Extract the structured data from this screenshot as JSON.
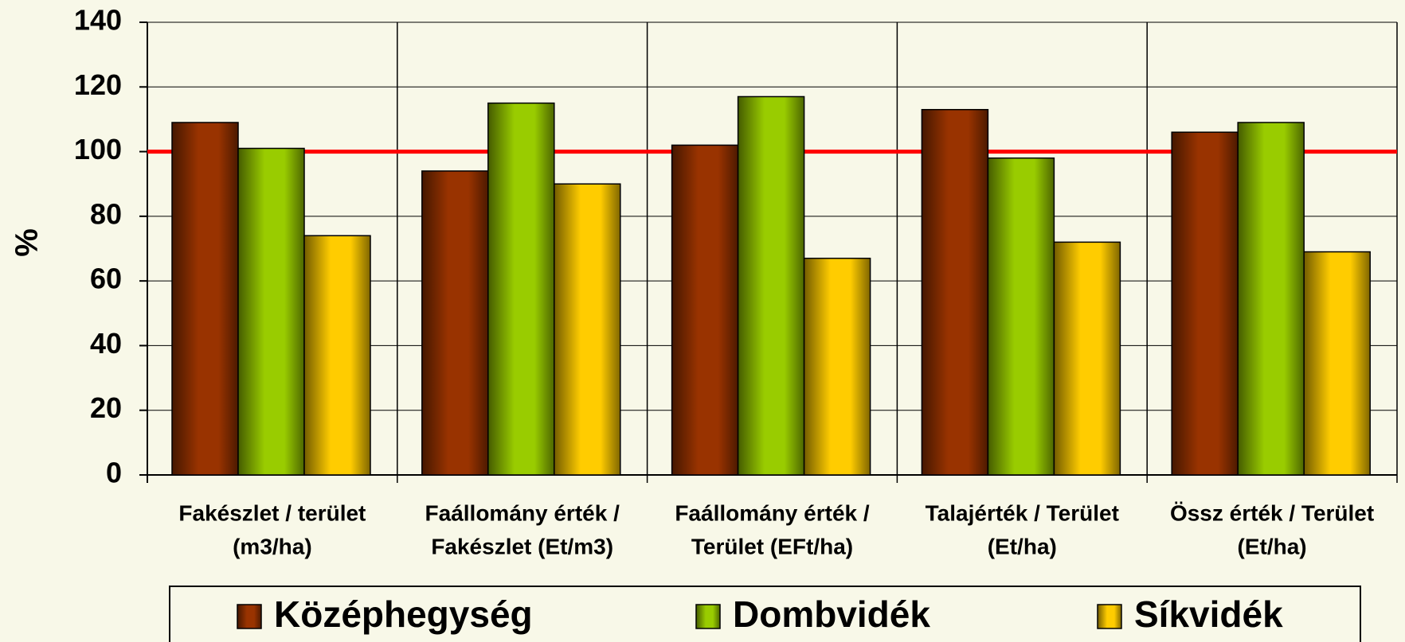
{
  "chart_data": {
    "type": "bar",
    "categories": [
      [
        "Fakészlet / terület",
        "(m3/ha)"
      ],
      [
        "Faállomány érték /",
        "Fakészlet (Et/m3)"
      ],
      [
        "Faállomány érték /",
        "Terület (EFt/ha)"
      ],
      [
        "Talajérték / Terület",
        "(Et/ha)"
      ],
      [
        "Össz érték / Terület",
        "(Et/ha)"
      ]
    ],
    "series": [
      {
        "name": "Középhegység",
        "color": "#993300",
        "values": [
          109,
          94,
          102,
          113,
          106
        ]
      },
      {
        "name": "Dombvidék",
        "color": "#99cc00",
        "values": [
          101,
          115,
          117,
          98,
          109
        ]
      },
      {
        "name": "Síkvidék",
        "color": "#ffcc00",
        "values": [
          74,
          90,
          67,
          72,
          69
        ]
      }
    ],
    "y_label": "%",
    "ylim": [
      0,
      140
    ],
    "yticks": [
      0,
      20,
      40,
      60,
      80,
      100,
      120,
      140
    ],
    "grid": true,
    "reference_line": {
      "value": 100,
      "color": "#ff0000"
    },
    "legend": "bottom"
  }
}
